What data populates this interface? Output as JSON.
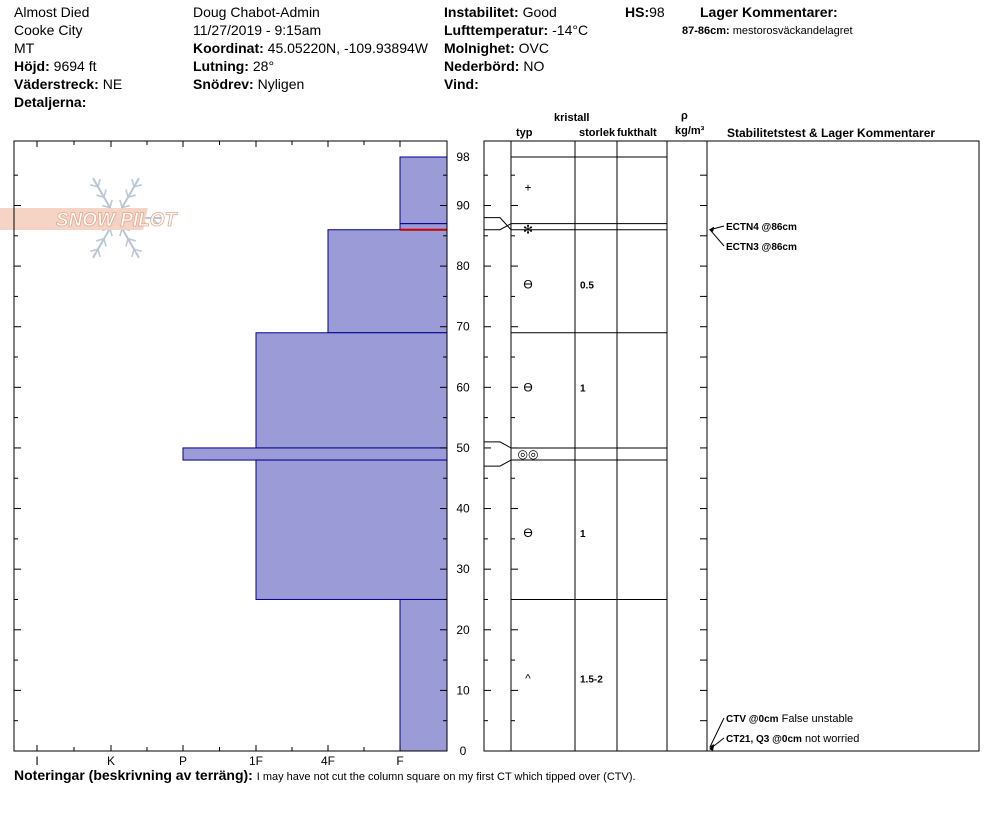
{
  "header": {
    "col1": {
      "location": "Almost Died",
      "area": "Cooke City",
      "state": "MT",
      "elevation_label": "Höjd:",
      "elevation_value": "9694 ft",
      "aspect_label": "Väderstreck:",
      "aspect_value": "NE",
      "details_label": "Detaljerna:"
    },
    "col2": {
      "observer": "Doug Chabot-Admin",
      "datetime": "11/27/2019 - 9:15am",
      "coord_label": "Koordinat:",
      "coord_value": "45.05220N, -109.93894W",
      "slope_label": "Lutning:",
      "slope_value": "28°",
      "drift_label": "Snödrev:",
      "drift_value": "Nyligen"
    },
    "col3": {
      "instability_label": "Instabilitet:",
      "instability_value": "Good",
      "airtemp_label": "Lufttemperatur:",
      "airtemp_value": "-14°C",
      "sky_label": "Molnighet:",
      "sky_value": "OVC",
      "precip_label": "Nederbörd:",
      "precip_value": "NO",
      "wind_label": "Vind:"
    },
    "hs_label": "HS:",
    "hs_value": "98",
    "layer_comments_label": "Lager Kommentarer:",
    "layer_comment_range": "87-86cm:",
    "layer_comment_text": "mestorosväckandelagret"
  },
  "logo": {
    "text": "SNOW PILOT"
  },
  "columns": {
    "crystal": "kristall",
    "type": "typ",
    "size": "storlek",
    "moisture": "fukthalt",
    "rho": "ρ",
    "density_unit": "kg/m³",
    "stability": "Stabilitetstest & Lager Kommentarer"
  },
  "notes": {
    "label": "Noteringar (beskrivning av terräng):",
    "text": "I may have not cut the column square on my first CT which tipped over (CTV)."
  },
  "colors": {
    "hardness_fill": "#9b9bd7",
    "hardness_stroke": "#00008b",
    "weak_layer": "#cc0000"
  },
  "chart_data": {
    "type": "bar",
    "y_axis": {
      "min": 0,
      "max": 98,
      "ticks": [
        "0",
        "10",
        "20",
        "30",
        "40",
        "50",
        "60",
        "70",
        "80",
        "90",
        "98"
      ]
    },
    "hardness_scale": [
      "I",
      "K",
      "P",
      "1F",
      "4F",
      "F"
    ],
    "hardness_layers": [
      {
        "bottom": 87,
        "top": 98,
        "hardness": "F"
      },
      {
        "bottom": 86,
        "top": 87,
        "hardness": "F"
      },
      {
        "bottom": 69,
        "top": 86,
        "hardness": "4F"
      },
      {
        "bottom": 50,
        "top": 69,
        "hardness": "1F"
      },
      {
        "bottom": 48,
        "top": 50,
        "hardness": "P"
      },
      {
        "bottom": 25,
        "top": 48,
        "hardness": "1F"
      },
      {
        "bottom": 0,
        "top": 25,
        "hardness": "F"
      }
    ],
    "weak_layer_cm": 86,
    "grain_layers": [
      {
        "y": 93,
        "symbol": "+",
        "size": ""
      },
      {
        "y": 86,
        "symbol": "✻",
        "size": ""
      },
      {
        "y": 77,
        "symbol": "ϴ",
        "size": "0.5"
      },
      {
        "y": 60,
        "symbol": "ϴ",
        "size": "1"
      },
      {
        "y": 49,
        "symbol": "◎◎",
        "size": ""
      },
      {
        "y": 36,
        "symbol": "ϴ",
        "size": "1"
      },
      {
        "y": 12,
        "symbol": "^",
        "size": "1.5-2"
      }
    ],
    "grain_boundaries": [
      98,
      87,
      86,
      69,
      50,
      48,
      25
    ],
    "stability_tests": [
      {
        "label": "ECTN4 @86cm",
        "comment": ""
      },
      {
        "label": "ECTN3 @86cm",
        "comment": ""
      },
      {
        "label": "CTV @0cm",
        "comment": "False unstable"
      },
      {
        "label": "CT21, Q3 @0cm",
        "comment": "not worried"
      }
    ]
  }
}
